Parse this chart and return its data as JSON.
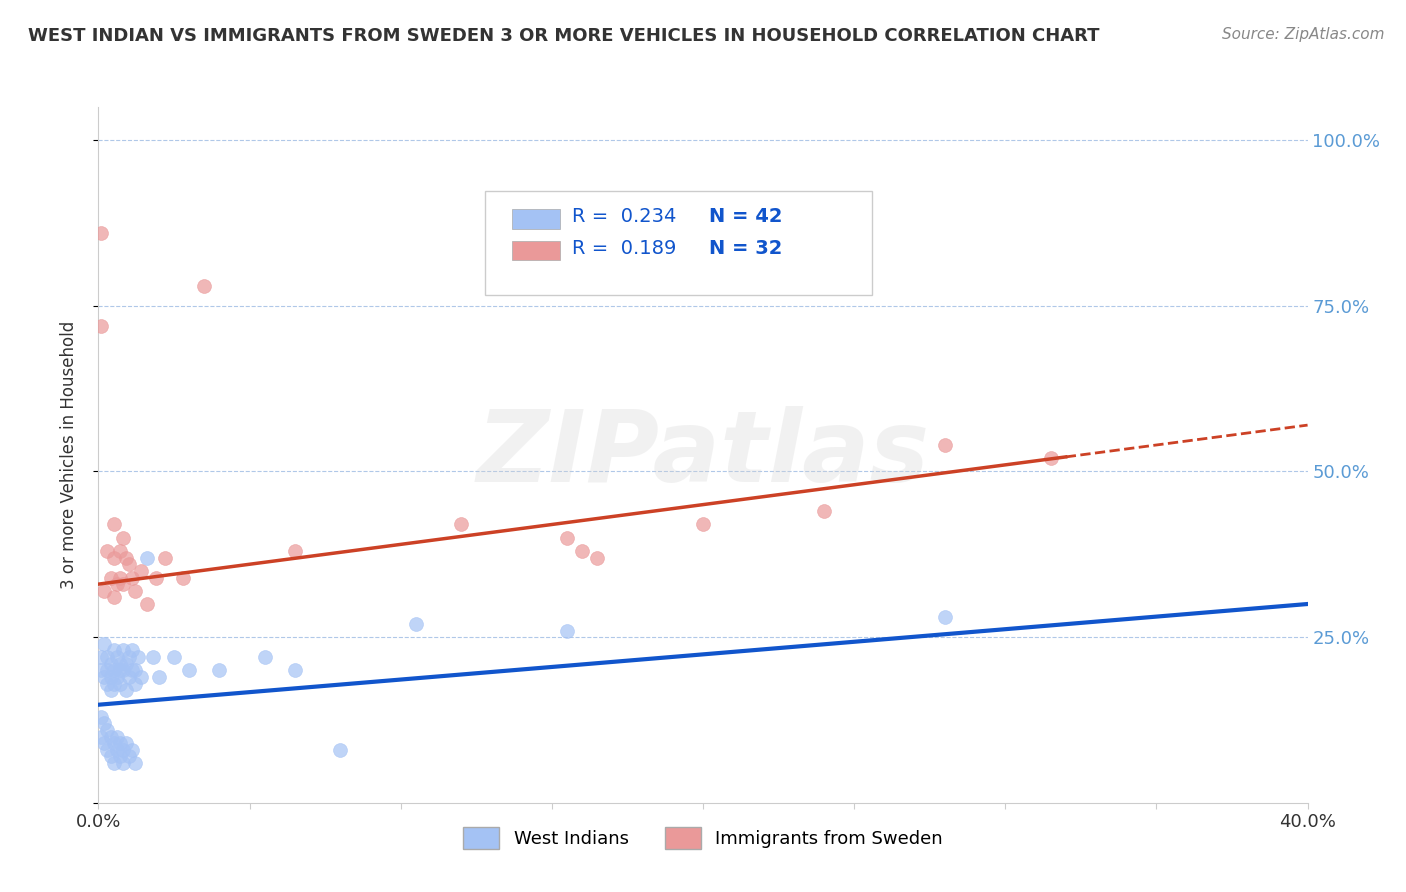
{
  "title": "WEST INDIAN VS IMMIGRANTS FROM SWEDEN 3 OR MORE VEHICLES IN HOUSEHOLD CORRELATION CHART",
  "source": "Source: ZipAtlas.com",
  "ylabel": "3 or more Vehicles in Household",
  "xlim": [
    0.0,
    0.4
  ],
  "ylim": [
    0.0,
    1.05
  ],
  "legend_R1": "0.234",
  "legend_N1": "42",
  "legend_R2": "0.189",
  "legend_N2": "32",
  "blue_color": "#a4c2f4",
  "pink_color": "#ea9999",
  "blue_line_color": "#1155cc",
  "pink_line_color": "#cc4125",
  "text_color": "#1155cc",
  "watermark": "ZIPatlas",
  "blue_intercept": 0.148,
  "blue_slope": 0.38,
  "pink_intercept": 0.33,
  "pink_slope": 0.6,
  "west_indian_x": [
    0.001,
    0.001,
    0.002,
    0.002,
    0.003,
    0.003,
    0.003,
    0.004,
    0.004,
    0.004,
    0.005,
    0.005,
    0.005,
    0.006,
    0.006,
    0.007,
    0.007,
    0.007,
    0.008,
    0.008,
    0.009,
    0.009,
    0.01,
    0.01,
    0.011,
    0.011,
    0.012,
    0.012,
    0.013,
    0.014,
    0.016,
    0.018,
    0.02,
    0.025,
    0.03,
    0.04,
    0.055,
    0.065,
    0.08,
    0.105,
    0.155,
    0.28
  ],
  "west_indian_y": [
    0.2,
    0.22,
    0.19,
    0.24,
    0.2,
    0.22,
    0.18,
    0.21,
    0.19,
    0.17,
    0.23,
    0.2,
    0.18,
    0.22,
    0.19,
    0.21,
    0.2,
    0.18,
    0.23,
    0.2,
    0.21,
    0.17,
    0.22,
    0.19,
    0.2,
    0.23,
    0.2,
    0.18,
    0.22,
    0.19,
    0.37,
    0.22,
    0.19,
    0.22,
    0.2,
    0.2,
    0.22,
    0.2,
    0.08,
    0.27,
    0.26,
    0.28
  ],
  "west_indian_y_low": [
    0.13,
    0.12,
    0.11,
    0.14,
    0.1,
    0.09,
    0.08,
    0.07,
    0.06,
    0.05,
    0.13,
    0.12,
    0.11,
    0.1,
    0.09
  ],
  "sweden_x": [
    0.001,
    0.001,
    0.002,
    0.003,
    0.004,
    0.005,
    0.005,
    0.006,
    0.007,
    0.007,
    0.008,
    0.009,
    0.01,
    0.011,
    0.012,
    0.014,
    0.016,
    0.019,
    0.022,
    0.028,
    0.035,
    0.065,
    0.12,
    0.155,
    0.16,
    0.165,
    0.2,
    0.24,
    0.28,
    0.315,
    0.005,
    0.008
  ],
  "sweden_y": [
    0.86,
    0.72,
    0.32,
    0.38,
    0.34,
    0.31,
    0.37,
    0.33,
    0.38,
    0.34,
    0.33,
    0.37,
    0.36,
    0.34,
    0.32,
    0.35,
    0.3,
    0.34,
    0.37,
    0.34,
    0.78,
    0.38,
    0.42,
    0.4,
    0.38,
    0.37,
    0.42,
    0.44,
    0.54,
    0.52,
    0.42,
    0.4
  ]
}
